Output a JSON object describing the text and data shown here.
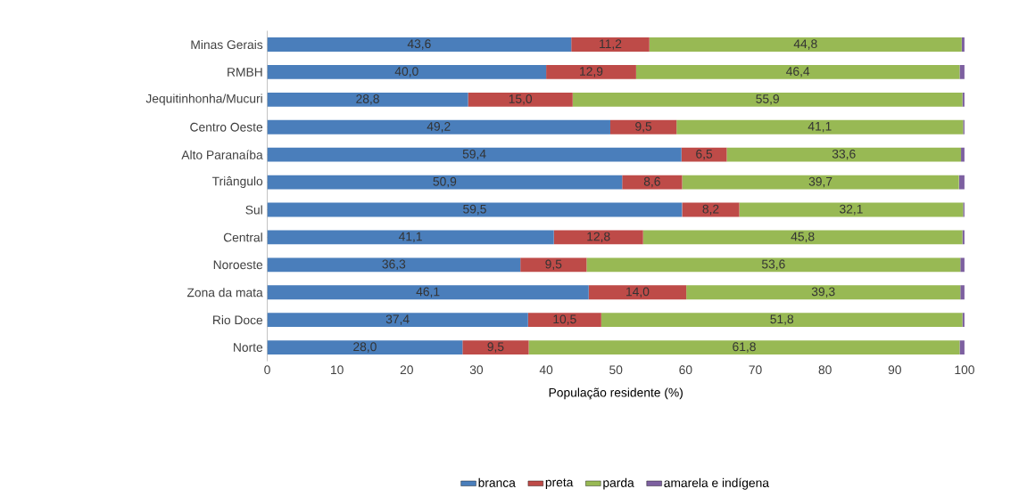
{
  "chart_data": {
    "type": "bar",
    "orientation": "horizontal",
    "stacked": true,
    "legend": "bottom",
    "xlabel": "População residente (%)",
    "xlim": [
      0,
      100
    ],
    "xticks": [
      0,
      10,
      20,
      30,
      40,
      50,
      60,
      70,
      80,
      90,
      100
    ],
    "categories": [
      "Minas Gerais",
      "RMBH",
      "Jequitinhonha/Mucuri",
      "Centro Oeste",
      "Alto Paranaíba",
      "Triângulo",
      "Sul",
      "Central",
      "Noroeste",
      "Zona da mata",
      "Rio Doce",
      "Norte"
    ],
    "series": [
      {
        "name": "branca",
        "color": "#4a7ebb",
        "values": [
          43.6,
          40.0,
          28.8,
          49.2,
          59.4,
          50.9,
          59.5,
          41.1,
          36.3,
          46.1,
          37.4,
          28.0
        ],
        "value_labels": [
          "43,6",
          "40,0",
          "28,8",
          "49,2",
          "59,4",
          "50,9",
          "59,5",
          "41,1",
          "36,3",
          "46,1",
          "37,4",
          "28,0"
        ]
      },
      {
        "name": "preta",
        "color": "#be4b48",
        "values": [
          11.2,
          12.9,
          15.0,
          9.5,
          6.5,
          8.6,
          8.2,
          12.8,
          9.5,
          14.0,
          10.5,
          9.5
        ],
        "value_labels": [
          "11,2",
          "12,9",
          "15,0",
          "9,5",
          "6,5",
          "8,6",
          "8,2",
          "12,8",
          "9,5",
          "14,0",
          "10,5",
          "9,5"
        ]
      },
      {
        "name": "parda",
        "color": "#98b954",
        "values": [
          44.8,
          46.4,
          55.9,
          41.1,
          33.6,
          39.7,
          32.1,
          45.8,
          53.6,
          39.3,
          51.8,
          61.8
        ],
        "value_labels": [
          "44,8",
          "46,4",
          "55,9",
          "41,1",
          "33,6",
          "39,7",
          "32,1",
          "45,8",
          "53,6",
          "39,3",
          "51,8",
          "61,8"
        ]
      },
      {
        "name": "amarela e indígena",
        "color": "#7d60a0",
        "values": [
          0.4,
          0.7,
          0.3,
          0.2,
          0.5,
          0.8,
          0.2,
          0.3,
          0.6,
          0.6,
          0.3,
          0.7
        ]
      }
    ]
  }
}
